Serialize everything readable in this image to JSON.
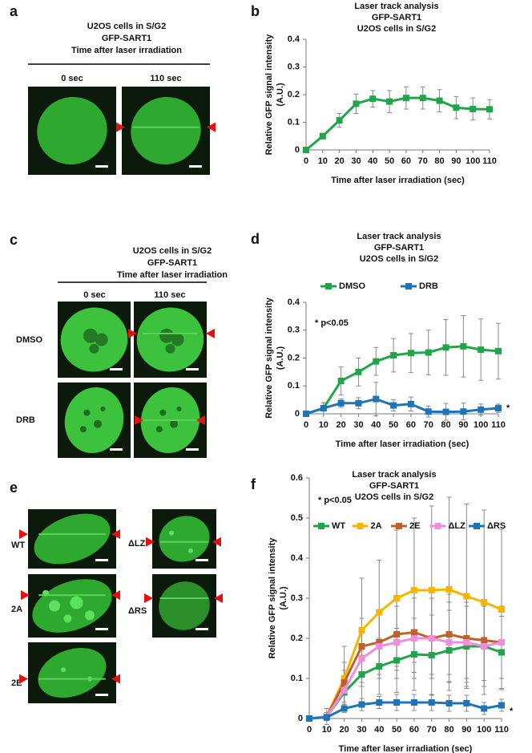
{
  "panels": {
    "a": {
      "label": "a",
      "title": [
        "U2OS cells in S/G2",
        "GFP-SART1",
        "Time after laser irradiation"
      ],
      "times": [
        "0 sec",
        "110 sec"
      ]
    },
    "b": {
      "label": "b"
    },
    "c": {
      "label": "c",
      "title": [
        "U2OS cells in S/G2",
        "GFP-SART1",
        "Time after laser irradiation"
      ],
      "times": [
        "0 sec",
        "110 sec"
      ],
      "rows": [
        "DMSO",
        "DRB"
      ]
    },
    "d": {
      "label": "d"
    },
    "e": {
      "label": "e",
      "conditions": [
        "WT",
        "2A",
        "2E",
        "ΔLZ",
        "ΔRS"
      ]
    },
    "f": {
      "label": "f"
    }
  },
  "chart_data": [
    {
      "type": "line",
      "title": [
        "Laser track analysis",
        "GFP-SART1",
        "U2OS cells in S/G2"
      ],
      "y_label": [
        "Relative GFP signal intensity",
        "(A.U.)"
      ],
      "x_label": "Time after laser irradiation (sec)",
      "x": [
        0,
        10,
        20,
        30,
        40,
        50,
        60,
        70,
        80,
        90,
        100,
        110
      ],
      "series": [
        {
          "color": "#21a54a",
          "values": [
            0,
            0.05,
            0.107,
            0.167,
            0.185,
            0.175,
            0.188,
            0.188,
            0.178,
            0.153,
            0.148,
            0.147
          ],
          "errors": [
            0,
            0.01,
            0.025,
            0.035,
            0.03,
            0.04,
            0.04,
            0.04,
            0.04,
            0.04,
            0.04,
            0.035
          ]
        }
      ],
      "xlim": [
        0,
        110
      ],
      "xticks": [
        0,
        10,
        20,
        30,
        40,
        50,
        60,
        70,
        80,
        90,
        100,
        110
      ],
      "ylim": [
        0,
        0.4
      ],
      "yticks": [
        0,
        0.1,
        0.2,
        0.3,
        0.4
      ]
    },
    {
      "type": "line",
      "title": [
        "Laser track analysis",
        "GFP-SART1",
        "U2OS cells in S/G2"
      ],
      "y_label": [
        "Relative GFP signal intensity",
        "(A.U.)"
      ],
      "x_label": "Time after laser irradiation (sec)",
      "x": [
        0,
        10,
        20,
        30,
        40,
        50,
        60,
        70,
        80,
        90,
        100,
        110
      ],
      "series": [
        {
          "name": "DMSO",
          "color": "#21a54a",
          "values": [
            0,
            0.02,
            0.118,
            0.15,
            0.188,
            0.21,
            0.218,
            0.22,
            0.238,
            0.242,
            0.23,
            0.225
          ],
          "errors": [
            0,
            0.02,
            0.05,
            0.05,
            0.05,
            0.06,
            0.07,
            0.08,
            0.1,
            0.11,
            0.11,
            0.1
          ]
        },
        {
          "name": "DRB",
          "color": "#1f73b7",
          "values": [
            0,
            0.02,
            0.038,
            0.038,
            0.053,
            0.03,
            0.035,
            0.008,
            0.007,
            0.008,
            0.015,
            0.02
          ],
          "errors": [
            0,
            0.02,
            0.015,
            0.02,
            0.06,
            0.02,
            0.025,
            0.02,
            0.03,
            0.03,
            0.02,
            0.015
          ]
        }
      ],
      "annotations": [
        "* p<0.05",
        "*"
      ],
      "legend": "top",
      "xlim": [
        0,
        110
      ],
      "xticks": [
        0,
        10,
        20,
        30,
        40,
        50,
        60,
        70,
        80,
        90,
        100,
        110
      ],
      "ylim": [
        0,
        0.4
      ],
      "yticks": [
        0,
        0.1,
        0.2,
        0.3,
        0.4
      ]
    },
    {
      "type": "line",
      "title": [
        "Laser track analysis",
        "GFP-SART1",
        "U2OS cells in S/G2"
      ],
      "y_label": [
        "Relative GFP signal intensity",
        "(A.U.)"
      ],
      "x_label": "Time after laser irradiation (sec)",
      "x": [
        0,
        10,
        20,
        30,
        40,
        50,
        60,
        70,
        80,
        90,
        100,
        110
      ],
      "series": [
        {
          "name": "WT",
          "color": "#21a54a",
          "values": [
            0,
            0.005,
            0.065,
            0.11,
            0.13,
            0.145,
            0.16,
            0.158,
            0.17,
            0.18,
            0.18,
            0.165
          ],
          "errors": [
            0,
            0.01,
            0.04,
            0.06,
            0.07,
            0.08,
            0.09,
            0.1,
            0.1,
            0.1,
            0.1,
            0.09
          ]
        },
        {
          "name": "2A",
          "color": "#f7b500",
          "values": [
            0,
            0.005,
            0.1,
            0.22,
            0.265,
            0.3,
            0.32,
            0.32,
            0.322,
            0.305,
            0.29,
            0.272
          ],
          "errors": [
            0,
            0.02,
            0.08,
            0.13,
            0.13,
            0.17,
            0.18,
            0.21,
            0.23,
            0.23,
            0.23,
            0.2
          ]
        },
        {
          "name": "2E",
          "color": "#c0602a",
          "values": [
            0,
            0.005,
            0.09,
            0.18,
            0.19,
            0.21,
            0.215,
            0.2,
            0.21,
            0.2,
            0.195,
            0.19
          ],
          "errors": [
            0,
            0.01,
            0.05,
            0.07,
            0.08,
            0.09,
            0.1,
            0.1,
            0.1,
            0.1,
            0.1,
            0.09
          ]
        },
        {
          "name": "ΔLZ",
          "color": "#f08cdc",
          "values": [
            0,
            0.005,
            0.07,
            0.15,
            0.18,
            0.19,
            0.2,
            0.2,
            0.19,
            0.19,
            0.18,
            0.19
          ],
          "errors": [
            0,
            0.01,
            0.05,
            0.07,
            0.08,
            0.09,
            0.1,
            0.1,
            0.1,
            0.1,
            0.1,
            0.09
          ]
        },
        {
          "name": "ΔRS",
          "color": "#1f73b7",
          "values": [
            0,
            0.003,
            0.025,
            0.035,
            0.04,
            0.04,
            0.04,
            0.04,
            0.038,
            0.038,
            0.025,
            0.033
          ],
          "errors": [
            0,
            0.005,
            0.01,
            0.015,
            0.015,
            0.02,
            0.02,
            0.02,
            0.02,
            0.02,
            0.015,
            0.015
          ]
        }
      ],
      "annotations": [
        "* p<0.05",
        "*"
      ],
      "legend": "top",
      "xlim": [
        0,
        110
      ],
      "xticks": [
        0,
        10,
        20,
        30,
        40,
        50,
        60,
        70,
        80,
        90,
        100,
        110
      ],
      "ylim": [
        0,
        0.6
      ],
      "yticks": [
        0,
        0.1,
        0.2,
        0.3,
        0.4,
        0.5,
        0.6
      ]
    }
  ]
}
